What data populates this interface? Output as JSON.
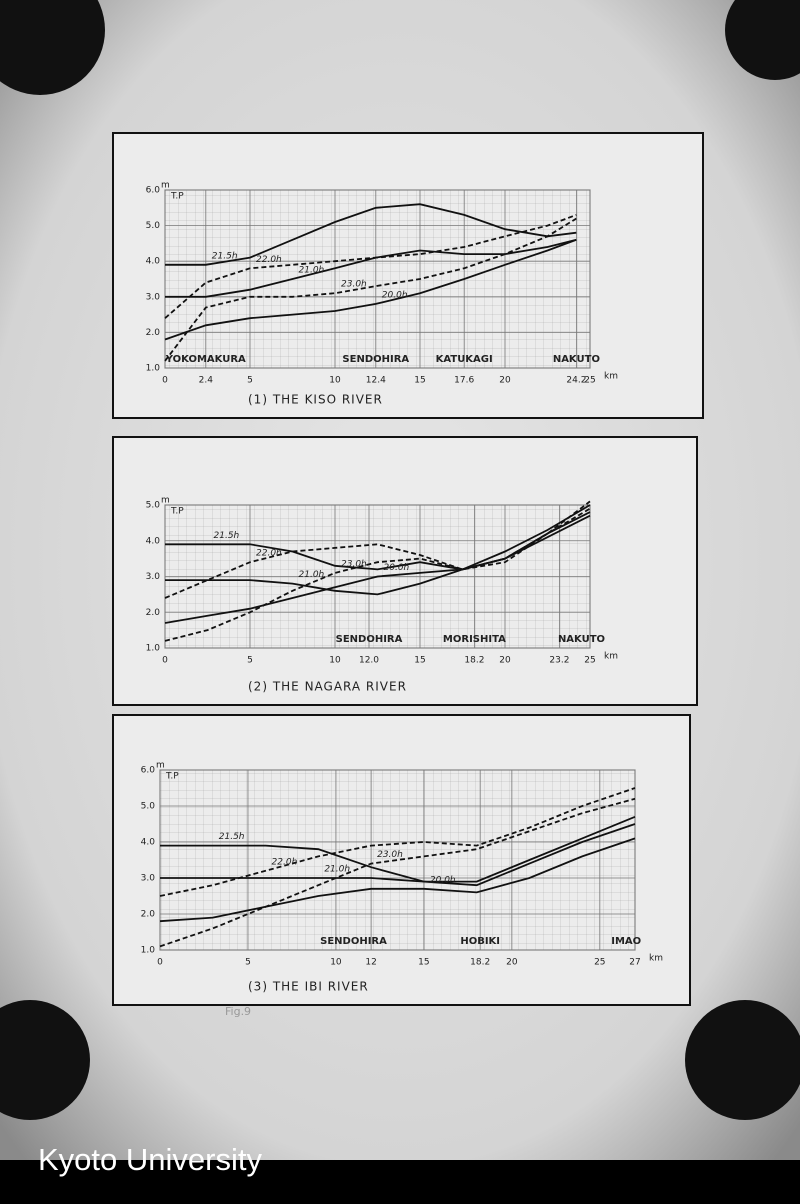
{
  "chart_data": [
    {
      "type": "line",
      "title": "(1) THE KISO RIVER",
      "y_label": "T.P",
      "y_unit": "m",
      "x_unit": "km",
      "xlim": [
        0,
        25
      ],
      "ylim": [
        1,
        6
      ],
      "xticks": [
        0,
        2.4,
        5,
        10,
        12.4,
        15,
        17.6,
        20,
        24.2,
        25
      ],
      "yticks": [
        {
          "value": 1,
          "label": "1.0"
        },
        {
          "value": 2,
          "label": "2.0"
        },
        {
          "value": 3,
          "label": "3.0"
        },
        {
          "value": 4,
          "label": "4.0"
        },
        {
          "value": 5,
          "label": "5.0"
        },
        {
          "value": 6,
          "label": "6.0"
        }
      ],
      "grid": true,
      "stations": [
        {
          "name": "YOKOMAKURA",
          "x": 2.4
        },
        {
          "name": "SENDOHIRA",
          "x": 12.4
        },
        {
          "name": "KATUKAGI",
          "x": 17.6
        },
        {
          "name": "NAKUTO",
          "x": 24.2
        }
      ],
      "x": [
        0,
        2.4,
        5,
        7.5,
        10,
        12.4,
        15,
        17.6,
        20,
        22.5,
        24.2
      ],
      "series": [
        {
          "name": "21.5h",
          "color": "#111111",
          "dashed": false,
          "values": [
            3.9,
            3.9,
            4.1,
            4.6,
            5.1,
            5.5,
            5.6,
            5.3,
            4.9,
            4.7,
            4.8
          ]
        },
        {
          "name": "22.0h",
          "color": "#111111",
          "dashed": true,
          "values": [
            2.4,
            3.4,
            3.8,
            3.9,
            4.0,
            4.1,
            4.2,
            4.4,
            4.7,
            5.0,
            5.3
          ]
        },
        {
          "name": "21.0h",
          "color": "#111111",
          "dashed": false,
          "values": [
            3.0,
            3.0,
            3.2,
            3.5,
            3.8,
            4.1,
            4.3,
            4.2,
            4.2,
            4.4,
            4.6
          ]
        },
        {
          "name": "23.0h",
          "color": "#111111",
          "dashed": true,
          "values": [
            1.2,
            2.7,
            3.0,
            3.0,
            3.1,
            3.3,
            3.5,
            3.8,
            4.2,
            4.7,
            5.2
          ]
        },
        {
          "name": "20.0h",
          "color": "#111111",
          "dashed": false,
          "values": [
            1.8,
            2.2,
            2.4,
            2.5,
            2.6,
            2.8,
            3.1,
            3.5,
            3.9,
            4.3,
            4.6
          ]
        }
      ]
    },
    {
      "type": "line",
      "title": "(2) THE NAGARA RIVER",
      "y_label": "T.P",
      "y_unit": "m",
      "x_unit": "km",
      "xlim": [
        0,
        25
      ],
      "ylim": [
        1,
        5
      ],
      "xticks": [
        0,
        5,
        10,
        {
          "value": 12,
          "label": "12.0"
        },
        15,
        18.2,
        20,
        23.2,
        25
      ],
      "yticks": [
        {
          "value": 1,
          "label": "1.0"
        },
        {
          "value": 2,
          "label": "2.0"
        },
        {
          "value": 3,
          "label": "3.0"
        },
        {
          "value": 4,
          "label": "4.0"
        },
        {
          "value": 5,
          "label": "5.0"
        }
      ],
      "grid": true,
      "stations": [
        {
          "name": "SENDOHIRA",
          "x": 12
        },
        {
          "name": "MORISHITA",
          "x": 18.2
        },
        {
          "name": "NAKUTO",
          "x": 24.5
        }
      ],
      "x": [
        0,
        2.5,
        5,
        7.5,
        10,
        12.5,
        15,
        17.5,
        20,
        22.5,
        25
      ],
      "series": [
        {
          "name": "21.5h",
          "color": "#111111",
          "dashed": false,
          "values": [
            3.9,
            3.9,
            3.9,
            3.7,
            3.3,
            3.2,
            3.4,
            3.2,
            3.5,
            4.2,
            4.8
          ]
        },
        {
          "name": "22.0h",
          "color": "#111111",
          "dashed": true,
          "values": [
            2.4,
            2.9,
            3.4,
            3.7,
            3.8,
            3.9,
            3.6,
            3.2,
            3.4,
            4.2,
            4.9
          ]
        },
        {
          "name": "21.0h",
          "color": "#111111",
          "dashed": false,
          "values": [
            2.9,
            2.9,
            2.9,
            2.8,
            2.6,
            2.5,
            2.8,
            3.2,
            3.7,
            4.3,
            5.0
          ]
        },
        {
          "name": "23.0h",
          "color": "#111111",
          "dashed": true,
          "values": [
            1.2,
            1.5,
            2.0,
            2.6,
            3.1,
            3.4,
            3.5,
            3.2,
            3.5,
            4.2,
            5.1
          ]
        },
        {
          "name": "20.0h",
          "color": "#111111",
          "dashed": false,
          "values": [
            1.7,
            1.9,
            2.1,
            2.4,
            2.7,
            3.0,
            3.1,
            3.2,
            3.5,
            4.1,
            4.7
          ]
        }
      ]
    },
    {
      "type": "line",
      "title": "(3) THE IBI RIVER",
      "y_label": "T.P",
      "y_unit": "m",
      "x_unit": "km",
      "xlim": [
        0,
        27
      ],
      "ylim": [
        1,
        6
      ],
      "xticks": [
        0,
        5,
        10,
        12,
        15,
        18.2,
        20,
        25,
        27
      ],
      "yticks": [
        {
          "value": 1,
          "label": "1.0"
        },
        {
          "value": 2,
          "label": "2.0"
        },
        {
          "value": 3,
          "label": "3.0"
        },
        {
          "value": 4,
          "label": "4.0"
        },
        {
          "value": 5,
          "label": "5.0"
        },
        {
          "value": 6,
          "label": "6.0"
        }
      ],
      "grid": true,
      "stations": [
        {
          "name": "SENDOHIRA",
          "x": 11
        },
        {
          "name": "HOBIKI",
          "x": 18.2
        },
        {
          "name": "IMAO",
          "x": 26.5
        }
      ],
      "x": [
        0,
        3,
        6,
        9,
        12,
        15,
        18,
        21,
        24,
        27
      ],
      "series": [
        {
          "name": "21.5h",
          "color": "#111111",
          "dashed": false,
          "values": [
            3.9,
            3.9,
            3.9,
            3.8,
            3.3,
            2.9,
            2.9,
            3.5,
            4.1,
            4.7
          ]
        },
        {
          "name": "22.0h",
          "color": "#111111",
          "dashed": true,
          "values": [
            2.5,
            2.8,
            3.2,
            3.6,
            3.9,
            4.0,
            3.9,
            4.4,
            5.0,
            5.5
          ]
        },
        {
          "name": "21.0h",
          "color": "#111111",
          "dashed": false,
          "values": [
            3.0,
            3.0,
            3.0,
            3.0,
            3.0,
            2.9,
            2.8,
            3.4,
            4.0,
            4.5
          ]
        },
        {
          "name": "23.0h",
          "color": "#111111",
          "dashed": true,
          "values": [
            1.1,
            1.6,
            2.2,
            2.8,
            3.4,
            3.6,
            3.8,
            4.3,
            4.8,
            5.2
          ]
        },
        {
          "name": "20.0h",
          "color": "#111111",
          "dashed": false,
          "values": [
            1.8,
            1.9,
            2.2,
            2.5,
            2.7,
            2.7,
            2.6,
            3.0,
            3.6,
            4.1
          ]
        }
      ]
    }
  ],
  "caption": "Fig.9",
  "watermark": "Kyoto University"
}
